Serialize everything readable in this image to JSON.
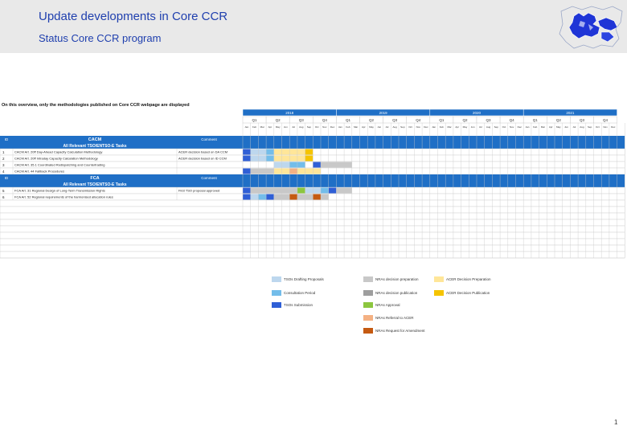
{
  "header": {
    "title": "Update developments in Core CCR",
    "subtitle": "Status Core CCR program"
  },
  "note": "On this overview, only the methodologies published on Core CCR webpage are displayed",
  "colors": {
    "header_blue": "#1f6fc6",
    "grid_line": "#c9c9c9",
    "drafting": "#bdd7ee",
    "consultation": "#73bdea",
    "submission": "#2f5fd6",
    "nra_preparation": "#c8c8c8",
    "nra_publication": "#9e9e9e",
    "nra_approval": "#8cc63f",
    "nra_referral": "#f4b183",
    "nra_amendment": "#c55a11",
    "acer_preparation": "#ffe699",
    "acer_publication": "#f5c400"
  },
  "timeline": {
    "years": [
      {
        "label": "2018",
        "months": 12
      },
      {
        "label": "2019",
        "months": 12
      },
      {
        "label": "2020",
        "months": 12
      },
      {
        "label": "2021",
        "months": 12
      }
    ],
    "quarters": [
      "Q1",
      "Q2",
      "Q3",
      "Q4",
      "Q1",
      "Q2",
      "Q3",
      "Q4",
      "Q1",
      "Q2",
      "Q3",
      "Q4",
      "Q1",
      "Q2",
      "Q3",
      "Q4"
    ],
    "months": [
      "Jan",
      "Feb",
      "Mar",
      "Apr",
      "May",
      "Jun",
      "Jul",
      "Aug",
      "Sep",
      "Oct",
      "Nov",
      "Dec",
      "Jan",
      "Feb",
      "Mar",
      "Apr",
      "May",
      "Jun",
      "Jul",
      "Aug",
      "Sep",
      "Oct",
      "Nov",
      "Dec",
      "Jan",
      "Feb",
      "Mar",
      "Apr",
      "May",
      "Jun",
      "Jul",
      "Aug",
      "Sep",
      "Oct",
      "Nov",
      "Dec",
      "Jan",
      "Feb",
      "Mar",
      "Apr",
      "May",
      "Jun",
      "Jul",
      "Aug",
      "Sep",
      "Oct",
      "Nov",
      "Dec"
    ]
  },
  "columns": {
    "id": "ID",
    "comment": "Comment"
  },
  "sections": [
    {
      "name": "CACM",
      "subtitle": "All Relevant TSO/ENTSO-E Tasks",
      "rows": [
        {
          "id": "1",
          "task": "CACM Art. 20ff Day-Ahead Capacity Calculation Methodology",
          "comment": "ACER decision based on DA CCM",
          "bars": [
            [
              0,
              1,
              "submission"
            ],
            [
              1,
              3,
              "drafting"
            ],
            [
              3,
              4,
              "consultation"
            ],
            [
              4,
              8,
              "acer_preparation"
            ],
            [
              8,
              9,
              "acer_publication"
            ]
          ]
        },
        {
          "id": "2",
          "task": "CACM Art. 20ff Intraday Capacity Calculation Methodology",
          "comment": "ACER decision based on ID CCM",
          "bars": [
            [
              0,
              1,
              "submission"
            ],
            [
              1,
              3,
              "drafting"
            ],
            [
              3,
              4,
              "consultation"
            ],
            [
              4,
              8,
              "acer_preparation"
            ],
            [
              8,
              9,
              "acer_publication"
            ]
          ]
        },
        {
          "id": "3",
          "task": "CACM Art. 35.1 Coordinated Redispatching and Countertrading",
          "comment": "",
          "bars": [
            [
              4,
              6,
              "drafting"
            ],
            [
              6,
              8,
              "consultation"
            ],
            [
              9,
              10,
              "submission"
            ],
            [
              10,
              14,
              "nra_preparation"
            ]
          ]
        },
        {
          "id": "4",
          "task": "CACM Art. 44 Fallback Procedures",
          "comment": "",
          "bars": [
            [
              0,
              1,
              "submission"
            ],
            [
              1,
              4,
              "nra_preparation"
            ],
            [
              4,
              6,
              "acer_preparation"
            ],
            [
              6,
              7,
              "nra_referral"
            ],
            [
              7,
              10,
              "acer_preparation"
            ]
          ]
        }
      ]
    },
    {
      "name": "FCA",
      "subtitle": "All Relevant TSO/ENTSO-E Tasks",
      "rows": [
        {
          "id": "5",
          "task": "FCA Art. 31 Regional Design of Long-Term Transmission Rights",
          "comment": "First TSO proposal approved",
          "bars": [
            [
              0,
              1,
              "submission"
            ],
            [
              1,
              7,
              "nra_preparation"
            ],
            [
              7,
              8,
              "nra_approval"
            ],
            [
              8,
              10,
              "drafting"
            ],
            [
              10,
              11,
              "consultation"
            ],
            [
              11,
              12,
              "submission"
            ],
            [
              12,
              14,
              "nra_preparation"
            ]
          ]
        },
        {
          "id": "6",
          "task": "FCA Art. 52 Regional requirements of the harmonised allocation rules",
          "comment": "",
          "bars": [
            [
              0,
              1,
              "submission"
            ],
            [
              1,
              2,
              "drafting"
            ],
            [
              2,
              3,
              "consultation"
            ],
            [
              3,
              4,
              "submission"
            ],
            [
              4,
              6,
              "nra_preparation"
            ],
            [
              6,
              7,
              "nra_amendment"
            ],
            [
              7,
              9,
              "nra_preparation"
            ],
            [
              9,
              10,
              "nra_amendment"
            ],
            [
              10,
              11,
              "nra_preparation"
            ]
          ]
        }
      ]
    }
  ],
  "legend": [
    {
      "label": "TSOs Drafting Proposals",
      "color_key": "drafting"
    },
    {
      "label": "Consultation Period",
      "color_key": "consultation"
    },
    {
      "label": "TSOs Submission",
      "color_key": "submission"
    },
    {
      "label": "NRAs decision preparation",
      "color_key": "nra_preparation"
    },
    {
      "label": "NRAs decision publication",
      "color_key": "nra_publication"
    },
    {
      "label": "NRAs Approval",
      "color_key": "nra_approval"
    },
    {
      "label": "NRAs Referral to ACER",
      "color_key": "nra_referral"
    },
    {
      "label": "NRAs Request for Amendment",
      "color_key": "nra_amendment"
    },
    {
      "label": "ACER Decision Preparation",
      "color_key": "acer_preparation"
    },
    {
      "label": "ACER Decision Publication",
      "color_key": "acer_publication"
    }
  ],
  "page_number": "1"
}
